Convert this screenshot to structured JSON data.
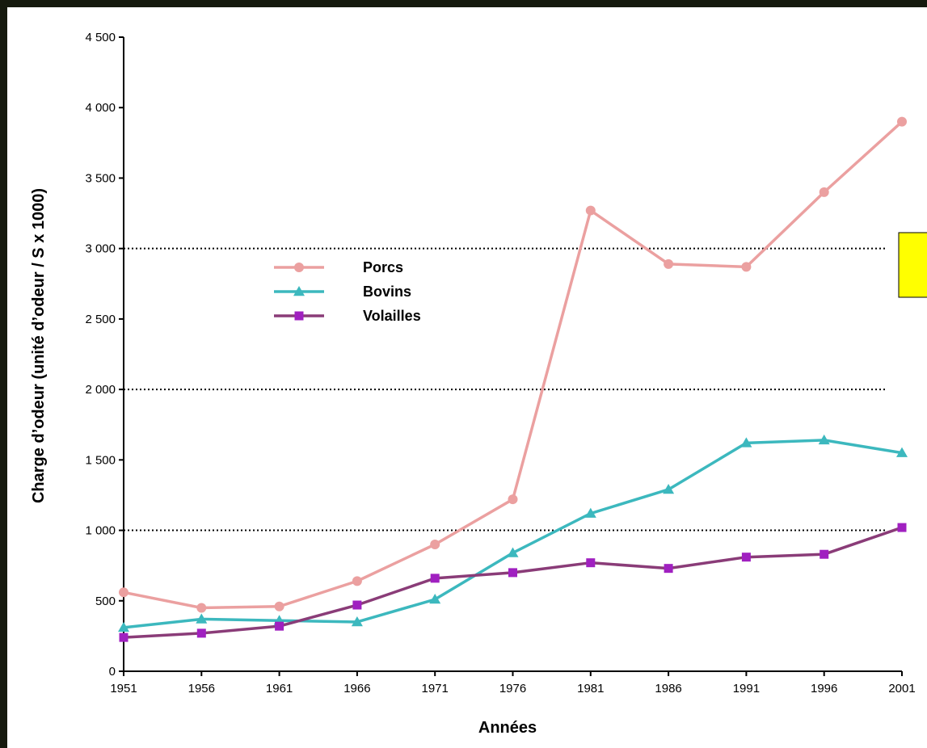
{
  "chart_data": {
    "type": "line",
    "title": "",
    "xlabel": "Années",
    "ylabel": "Charge d’odeur (unité d’odeur / S x 1000)",
    "x": [
      1951,
      1956,
      1961,
      1966,
      1971,
      1976,
      1981,
      1986,
      1991,
      1996,
      2001
    ],
    "x_tick_labels": [
      "1951",
      "1956",
      "1961",
      "1966",
      "1971",
      "1976",
      "1981",
      "1986",
      "1991",
      "1996",
      "2001"
    ],
    "ylim": [
      0,
      4500
    ],
    "y_ticks": [
      0,
      500,
      1000,
      1500,
      2000,
      2500,
      3000,
      3500,
      4000,
      4500
    ],
    "y_tick_labels": [
      "0",
      "500",
      "1 000",
      "1 500",
      "2 000",
      "2 500",
      "3 000",
      "3 500",
      "4 000",
      "4 500"
    ],
    "gridlines_y": [
      1000,
      2000,
      3000
    ],
    "grid_style": "dotted",
    "legend_position": "upper-left",
    "series": [
      {
        "name": "Porcs",
        "color": "#eba0a0",
        "marker": "circle",
        "values": [
          560,
          450,
          460,
          640,
          900,
          1220,
          3270,
          2890,
          2870,
          3400,
          3900
        ]
      },
      {
        "name": "Bovins",
        "color": "#3cb8be",
        "marker": "triangle",
        "values": [
          310,
          370,
          360,
          350,
          510,
          840,
          1120,
          1290,
          1620,
          1640,
          1550
        ]
      },
      {
        "name": "Volailles",
        "color": "#8a3c78",
        "marker_color": "#a020c0",
        "marker": "square",
        "values": [
          240,
          270,
          320,
          470,
          660,
          700,
          770,
          730,
          810,
          830,
          1020
        ]
      }
    ],
    "annotation_box_color": "#ffff00"
  }
}
